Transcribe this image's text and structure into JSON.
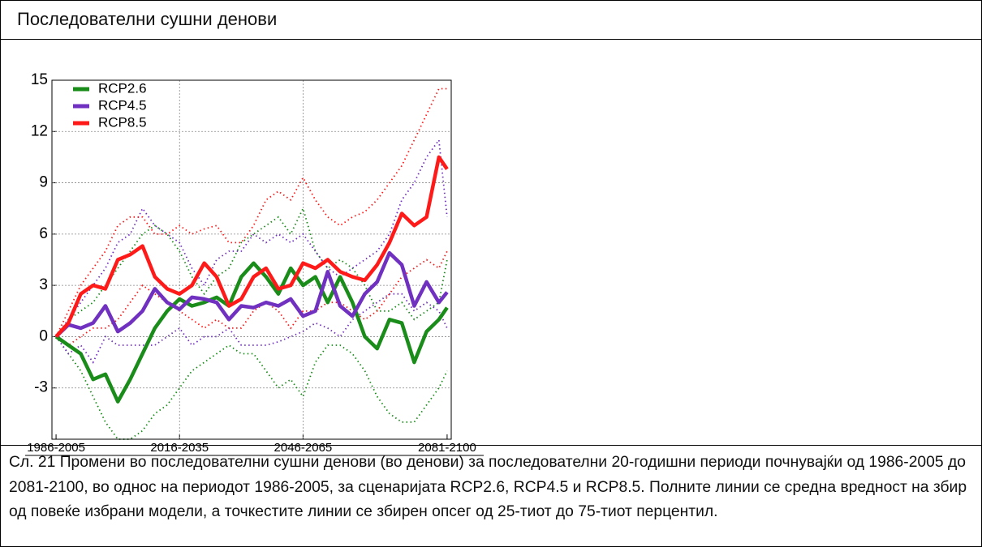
{
  "header": {
    "title": "Последователни сушни денови"
  },
  "chart_data": {
    "type": "line",
    "x": [
      1986,
      1989,
      1992,
      1995,
      1998,
      2001,
      2004,
      2007,
      2010,
      2013,
      2016,
      2019,
      2022,
      2025,
      2028,
      2031,
      2034,
      2037,
      2040,
      2043,
      2046,
      2049,
      2052,
      2055,
      2058,
      2061,
      2064,
      2067,
      2070,
      2073,
      2076,
      2079,
      2081
    ],
    "xlim": [
      1985,
      2082
    ],
    "xticks": [
      {
        "value": 1986,
        "label": "1986-2005"
      },
      {
        "value": 2016,
        "label": "2016-2035"
      },
      {
        "value": 2046,
        "label": "2046-2065"
      },
      {
        "value": 2081,
        "label": "2081-2100"
      }
    ],
    "ylim": [
      -6,
      15
    ],
    "yticks": [
      -3,
      0,
      3,
      6,
      9,
      12,
      15
    ],
    "grid": true,
    "legend": "upper-left",
    "series": [
      {
        "name": "RCP2.6",
        "color": "#1a8c1a",
        "values": [
          0,
          -0.5,
          -1,
          -2.5,
          -2.2,
          -3.8,
          -2.5,
          -1,
          0.5,
          1.5,
          2.2,
          1.8,
          2,
          2.3,
          1.8,
          3.5,
          4.3,
          3.5,
          2.5,
          4,
          3,
          3.5,
          2,
          3.5,
          2,
          0,
          -0.7,
          1,
          0.8,
          -1.5,
          0.3,
          1,
          1.7
        ],
        "high": [
          0,
          1,
          1.5,
          2,
          3,
          4,
          5,
          6,
          6.5,
          6,
          5,
          3.5,
          2.5,
          3.5,
          4,
          5.5,
          6,
          6.5,
          7,
          6,
          7.5,
          5,
          4,
          4.5,
          4,
          3,
          1.5,
          1.5,
          2,
          1,
          1.5,
          2,
          4.5
        ],
        "low": [
          0,
          -1,
          -2,
          -3.5,
          -5,
          -6,
          -6,
          -5.5,
          -4.5,
          -4,
          -3,
          -2,
          -1.5,
          -1,
          -0.5,
          -1,
          -1,
          -2,
          -3,
          -2.5,
          -3.5,
          -1.5,
          -0.5,
          -0.5,
          -1,
          -2,
          -3.5,
          -4.5,
          -5,
          -5,
          -4,
          -3,
          -2
        ]
      },
      {
        "name": "RCP4.5",
        "color": "#7030c0",
        "values": [
          0,
          0.7,
          0.5,
          0.8,
          1.8,
          0.3,
          0.8,
          1.5,
          2.8,
          2,
          1.6,
          2.3,
          2.2,
          2,
          1,
          1.8,
          1.7,
          2,
          1.8,
          2.2,
          1.2,
          1.5,
          3.8,
          1.8,
          1.2,
          2.5,
          3.2,
          4.9,
          4.2,
          1.8,
          3.2,
          2,
          2.6
        ],
        "high": [
          0,
          1,
          2,
          3,
          4,
          5.5,
          6,
          7.5,
          6.5,
          6,
          5.5,
          4,
          3,
          4.5,
          5,
          5,
          6,
          5.5,
          6,
          5.5,
          6,
          5,
          4,
          3.5,
          4,
          4.5,
          5,
          6,
          8,
          9,
          10.5,
          11.5,
          7
        ],
        "low": [
          0,
          -1,
          -0.5,
          -1.5,
          0,
          -0.5,
          -0.5,
          -0.5,
          -0.5,
          0,
          0.5,
          -0.5,
          0,
          0,
          0.5,
          -0.5,
          -0.5,
          -0.5,
          -0.3,
          0,
          0.3,
          0.8,
          0.5,
          0,
          1,
          1.5,
          2,
          2.5,
          2.5,
          1.5,
          2,
          1.5,
          0.5
        ]
      },
      {
        "name": "RCP8.5",
        "color": "#ff1a1a",
        "values": [
          0,
          0.8,
          2.5,
          3,
          2.8,
          4.5,
          4.8,
          5.3,
          3.5,
          2.8,
          2.5,
          3,
          4.3,
          3.5,
          1.8,
          2.2,
          3.5,
          4,
          2.8,
          3,
          4.3,
          4,
          4.5,
          3.8,
          3.5,
          3.3,
          4.2,
          5.5,
          7.2,
          6.5,
          7,
          10.5,
          9.8
        ],
        "high": [
          0,
          1.5,
          3,
          4,
          5,
          6.5,
          7,
          7,
          6,
          6,
          6.5,
          6,
          6.3,
          6.5,
          5.5,
          5.5,
          6.5,
          8,
          8.5,
          8,
          9.3,
          8,
          7,
          6.5,
          7,
          7.3,
          8,
          9,
          10,
          11.5,
          13,
          14.5,
          14.5
        ],
        "low": [
          0,
          -0.5,
          0,
          0.5,
          0.5,
          1,
          2,
          3,
          2.5,
          2,
          1.5,
          1,
          0.5,
          1,
          0.5,
          0.5,
          1.5,
          2,
          1.5,
          0.5,
          1.5,
          1.5,
          2,
          2,
          1.5,
          1,
          1.5,
          2.5,
          3.5,
          4,
          4.5,
          4,
          5
        ]
      }
    ]
  },
  "caption": "Сл. 21 Промени во последователни сушни денови (во денови) за последователни 20-годишни периоди почнувајќи од 1986-2005 до 2081-2100, во однос на периодот 1986-2005, за сценаријата RCP2.6, RCP4.5 и RCP8.5. Полните линии се средна вредност на збир од повеќе избрани модели, а точкестите линии се збирен опсег од 25-тиот до 75-тиот перцентил."
}
